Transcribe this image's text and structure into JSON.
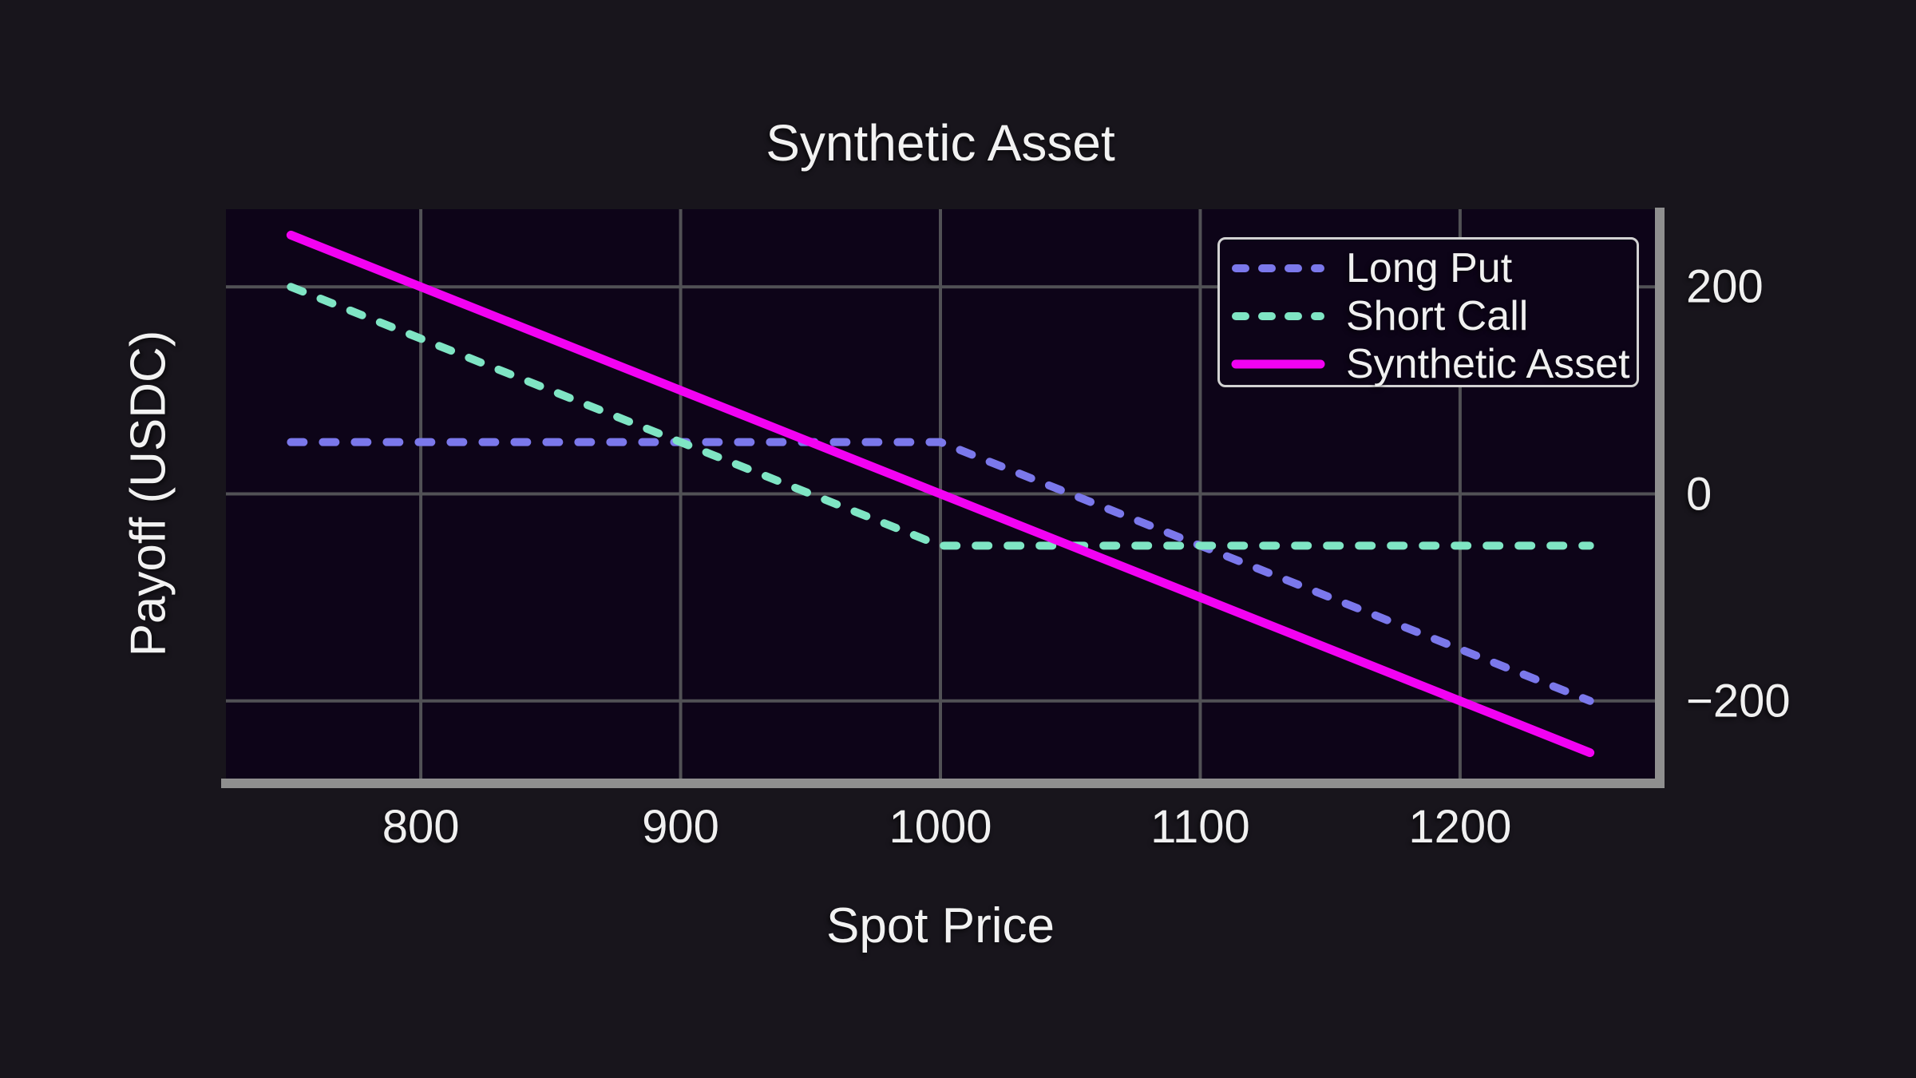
{
  "chart_data": {
    "type": "line",
    "title": "Synthetic Asset",
    "xlabel": "Spot Price",
    "ylabel": "Payoff (USDC)",
    "xlim": [
      725,
      1275
    ],
    "ylim": [
      -275,
      275
    ],
    "xticks": [
      800,
      900,
      1000,
      1100,
      1200
    ],
    "yticks": [
      200,
      0,
      -200
    ],
    "grid": true,
    "legend_position": "upper right",
    "series": [
      {
        "name": "Long Put",
        "color": "#7b78eb",
        "style": "dashed",
        "points": [
          [
            750,
            50
          ],
          [
            1000,
            50
          ],
          [
            1250,
            -200
          ]
        ]
      },
      {
        "name": "Short Call",
        "color": "#7fe5c4",
        "style": "dashed",
        "points": [
          [
            750,
            200
          ],
          [
            1000,
            -50
          ],
          [
            1250,
            -50
          ]
        ]
      },
      {
        "name": "Synthetic Asset",
        "color": "#f202f2",
        "style": "solid",
        "points": [
          [
            750,
            250
          ],
          [
            1000,
            0
          ],
          [
            1250,
            -250
          ]
        ]
      }
    ],
    "colors": {
      "page_background": "#18151c",
      "plot_background": "#0d0418",
      "gridline": "#515155",
      "spine": "#8f8f8f",
      "text": "#f0f0f0",
      "legend_border": "#d2d2d2"
    }
  }
}
